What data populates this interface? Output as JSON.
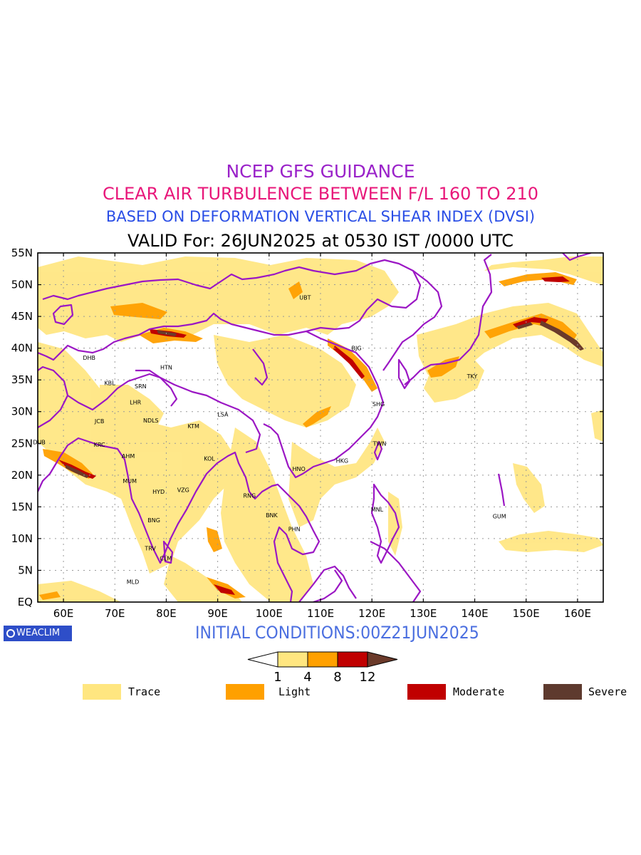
{
  "title": {
    "line1": "NCEP GFS GUIDANCE",
    "line2": "CLEAR AIR TURBULENCE BETWEEN F/L 160 TO 210",
    "line3": "BASED ON DEFORMATION VERTICAL SHEAR INDEX (DVSI)",
    "line4": "VALID For: 26JUN2025 at 0530 IST /0000 UTC"
  },
  "map": {
    "lon_range": [
      55,
      165
    ],
    "lat_range": [
      0,
      55
    ],
    "lon_ticks": [
      "60E",
      "70E",
      "80E",
      "90E",
      "100E",
      "110E",
      "120E",
      "130E",
      "140E",
      "150E",
      "160E"
    ],
    "lat_ticks": [
      "EQ",
      "5N",
      "10N",
      "15N",
      "20N",
      "25N",
      "30N",
      "35N",
      "40N",
      "45N",
      "50N",
      "55N"
    ],
    "grid": true,
    "border_color": "#9b17c4",
    "stations": [
      {
        "code": "UBT",
        "lon": 107,
        "lat": 48
      },
      {
        "code": "BJG",
        "lon": 117,
        "lat": 40
      },
      {
        "code": "DHB",
        "lon": 65,
        "lat": 38.5
      },
      {
        "code": "HTN",
        "lon": 80,
        "lat": 37
      },
      {
        "code": "KBL",
        "lon": 69,
        "lat": 34.5
      },
      {
        "code": "SRN",
        "lon": 75,
        "lat": 34
      },
      {
        "code": "LHR",
        "lon": 74,
        "lat": 31.5
      },
      {
        "code": "TKY",
        "lon": 139.5,
        "lat": 35.6
      },
      {
        "code": "SHG",
        "lon": 121.3,
        "lat": 31.2
      },
      {
        "code": "LSA",
        "lon": 91,
        "lat": 29.6
      },
      {
        "code": "JCB",
        "lon": 67,
        "lat": 28.5
      },
      {
        "code": "NDLS",
        "lon": 77,
        "lat": 28.6
      },
      {
        "code": "KTM",
        "lon": 85.3,
        "lat": 27.7
      },
      {
        "code": "DUB",
        "lon": 55.3,
        "lat": 25.2
      },
      {
        "code": "KRC",
        "lon": 67,
        "lat": 24.8
      },
      {
        "code": "TWN",
        "lon": 121.5,
        "lat": 25
      },
      {
        "code": "AHM",
        "lon": 72.6,
        "lat": 23
      },
      {
        "code": "KOL",
        "lon": 88.4,
        "lat": 22.6
      },
      {
        "code": "HKG",
        "lon": 114.2,
        "lat": 22.3
      },
      {
        "code": "HNO",
        "lon": 105.8,
        "lat": 21
      },
      {
        "code": "MUM",
        "lon": 72.9,
        "lat": 19.1
      },
      {
        "code": "HYD",
        "lon": 78.5,
        "lat": 17.4
      },
      {
        "code": "VZG",
        "lon": 83.3,
        "lat": 17.7
      },
      {
        "code": "RNG",
        "lon": 96.2,
        "lat": 16.8
      },
      {
        "code": "GUM",
        "lon": 144.8,
        "lat": 13.5
      },
      {
        "code": "MNL",
        "lon": 121,
        "lat": 14.6
      },
      {
        "code": "BNK",
        "lon": 100.5,
        "lat": 13.7
      },
      {
        "code": "BNG",
        "lon": 77.6,
        "lat": 12.9
      },
      {
        "code": "PHN",
        "lon": 104.9,
        "lat": 11.5
      },
      {
        "code": "TRV",
        "lon": 76.9,
        "lat": 8.5
      },
      {
        "code": "CLM",
        "lon": 79.9,
        "lat": 6.9
      },
      {
        "code": "MLD",
        "lon": 73.5,
        "lat": 3.2
      }
    ]
  },
  "colorbar": {
    "colors": [
      "#ffffff",
      "#ffe680",
      "#ffa000",
      "#c00000",
      "#6b3a2a"
    ],
    "labels": [
      "1",
      "4",
      "8",
      "12"
    ]
  },
  "legend": [
    {
      "label": "Trace",
      "color": "#ffe680"
    },
    {
      "label": "Light",
      "color": "#ffa000"
    },
    {
      "label": "Moderate",
      "color": "#c00000"
    },
    {
      "label": "Severe",
      "color": "#5e3a2e"
    }
  ],
  "footer": {
    "logo_text": "WEACLIM",
    "initial_conditions": "INITIAL CONDITIONS:00Z21JUN2025"
  }
}
